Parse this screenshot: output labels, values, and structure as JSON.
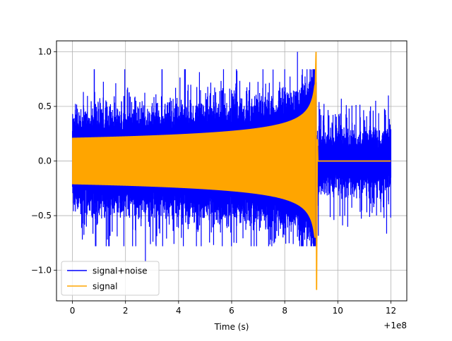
{
  "chart_data": {
    "type": "line",
    "title": "",
    "xlabel": "Time (s)",
    "ylabel": "",
    "x_offset_label": "+1e8",
    "xlim": [
      -0.6,
      12.6
    ],
    "ylim": [
      -1.28,
      1.1
    ],
    "x_ticks": [
      0,
      2,
      4,
      6,
      8,
      10,
      12
    ],
    "x_tick_labels": [
      "0",
      "2",
      "4",
      "6",
      "8",
      "10",
      "12"
    ],
    "y_ticks": [
      -1.0,
      -0.5,
      0.0,
      0.5,
      1.0
    ],
    "y_tick_labels": [
      "−1.0",
      "−0.5",
      "0.0",
      "0.5",
      "1.0"
    ],
    "grid": true,
    "legend_position": "lower-left",
    "series": [
      {
        "name": "signal+noise",
        "color": "#0000ff",
        "x_range": [
          0.0,
          12.0
        ],
        "description_values": {
          "amplitude_start": 0.2,
          "amplitude_before_merger": 0.58,
          "merger_time": 9.2,
          "noise_sigma": 0.12,
          "max_peak": 1.0,
          "max_peak_x": 8.48,
          "min_peak": -0.92,
          "min_peak_x": 2.75
        }
      },
      {
        "name": "signal",
        "color": "#ffa500",
        "x_range": [
          0.0,
          12.0
        ],
        "description_values": {
          "amplitude_start": 0.21,
          "amplitude_before_merger": 0.48,
          "merger_time": 9.2,
          "peak_max": 1.0,
          "peak_min": -1.18
        }
      }
    ]
  }
}
